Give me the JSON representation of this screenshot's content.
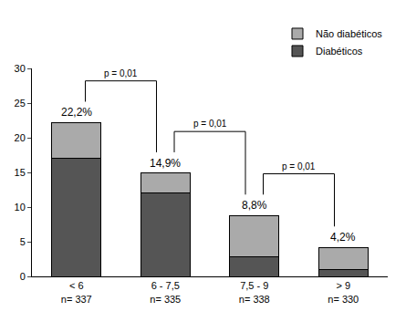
{
  "chart_data": {
    "type": "bar",
    "stacked": true,
    "categories": [
      "< 6\nn= 337",
      "6 - 7,5\nn= 335",
      "7,5 - 9\nn= 338",
      "> 9\nn= 330"
    ],
    "series": [
      {
        "name": "Diabéticos",
        "color": "#555555",
        "values": [
          17,
          12,
          2.8,
          1
        ]
      },
      {
        "name": "Não diabéticos",
        "color": "#aaaaaa",
        "values": [
          5.2,
          2.9,
          6.0,
          3.2
        ]
      }
    ],
    "totals": [
      22.2,
      14.9,
      8.8,
      4.2
    ],
    "total_labels": [
      "22,2%",
      "14,9%",
      "8,8%",
      "4,2%"
    ],
    "brackets": [
      {
        "from": 0,
        "to": 1,
        "text": "p = 0,01"
      },
      {
        "from": 1,
        "to": 2,
        "text": "p = 0,01"
      },
      {
        "from": 2,
        "to": 3,
        "text": "p = 0,01"
      }
    ],
    "ylim": [
      0,
      30
    ],
    "yticks": [
      0,
      5,
      10,
      15,
      20,
      25,
      30
    ],
    "grid": false,
    "legend": "top right"
  }
}
